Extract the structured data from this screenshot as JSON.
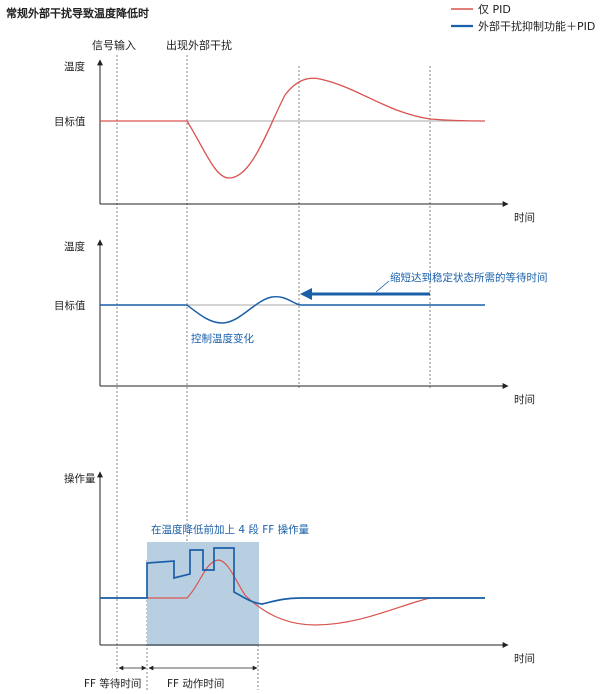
{
  "title": "常规外部干扰导致温度降低时",
  "legend": [
    {
      "label": "仅 PID",
      "color": "#d9534f"
    },
    {
      "label": "外部干扰抑制功能＋PID",
      "color": "#1a5fa8"
    }
  ],
  "event_labels": {
    "signal_input": "信号输入",
    "disturbance": "出现外部干扰"
  },
  "panel1": {
    "y_label": "温度",
    "target_label": "目标值",
    "x_label": "时间"
  },
  "panel2": {
    "y_label": "温度",
    "target_label": "目标值",
    "x_label": "时间",
    "annotation_wait": "缩短达到稳定状态所需的等待时间",
    "annotation_control": "控制温度变化"
  },
  "panel3": {
    "y_label": "操作量",
    "x_label": "时间",
    "annotation_ff": "在温度降低前加上 4 段 FF 操作量",
    "ff_wait_label": "FF 等待时间",
    "ff_action_label": "FF 动作时间"
  },
  "colors": {
    "pid_only": "#d9534f",
    "ff_pid": "#1a5fa8",
    "ff_box": "#b7cfe1",
    "axis": "#222222",
    "guide": "#555555"
  }
}
